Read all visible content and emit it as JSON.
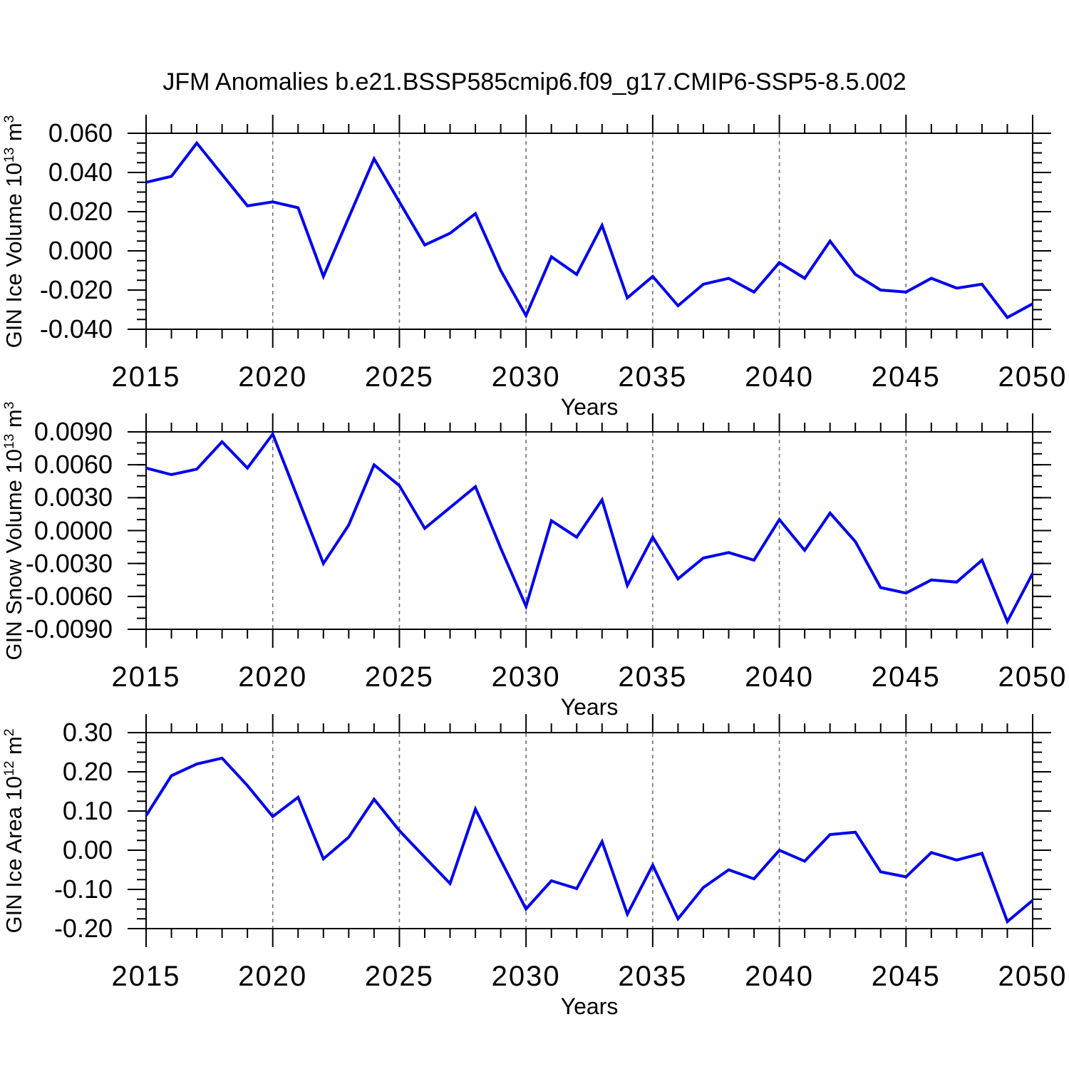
{
  "title": "JFM Anomalies b.e21.BSSP585cmip6.f09_g17.CMIP6-SSP5-8.5.002",
  "x_axis": {
    "label": "Years",
    "range": [
      2015,
      2050
    ],
    "tick_labels": [
      "2015",
      "2020",
      "2025",
      "2030",
      "2035",
      "2040",
      "2045",
      "2050"
    ],
    "tick_values": [
      2015,
      2020,
      2025,
      2030,
      2035,
      2040,
      2045,
      2050
    ],
    "minor_step": 1,
    "gridline_years": [
      2020,
      2025,
      2030,
      2035,
      2040,
      2045
    ]
  },
  "style": {
    "line_color": "#0000EE",
    "axis_color": "#000000",
    "grid_color": "#707070",
    "text_color": "#000000"
  },
  "chart_data": {
    "type": "line",
    "title": "JFM Anomalies b.e21.BSSP585cmip6.f09_g17.CMIP6-SSP5-8.5.002",
    "xlabel": "Years",
    "x": [
      2015,
      2016,
      2017,
      2018,
      2019,
      2020,
      2021,
      2022,
      2023,
      2024,
      2025,
      2026,
      2027,
      2028,
      2029,
      2030,
      2031,
      2032,
      2033,
      2034,
      2035,
      2036,
      2037,
      2038,
      2039,
      2040,
      2041,
      2042,
      2043,
      2044,
      2045,
      2046,
      2047,
      2048,
      2049,
      2050
    ],
    "grid": "vertical-dashed",
    "legend": "none",
    "panels": [
      {
        "ylabel": "GIN Ice Volume 10^13 m^3",
        "ylabel_parts": [
          [
            "GIN Ice Volume 10",
            false
          ],
          [
            "13",
            true
          ],
          [
            " m",
            false
          ],
          [
            "3",
            true
          ]
        ],
        "ylim": [
          -0.04,
          0.06
        ],
        "ytick_values": [
          0.06,
          0.04,
          0.02,
          0.0,
          -0.02,
          -0.04
        ],
        "ytick_labels": [
          "0.060",
          "0.040",
          "0.020",
          "0.000",
          "-0.020",
          "-0.040"
        ],
        "yminor_step": 0.005,
        "values": [
          0.035,
          0.038,
          0.055,
          0.039,
          0.023,
          0.025,
          0.022,
          -0.013,
          0.017,
          0.047,
          0.025,
          0.003,
          0.009,
          0.019,
          -0.01,
          -0.033,
          -0.003,
          -0.012,
          0.013,
          -0.024,
          -0.013,
          -0.028,
          -0.017,
          -0.014,
          -0.021,
          -0.006,
          -0.014,
          0.005,
          -0.012,
          -0.02,
          -0.021,
          -0.014,
          -0.019,
          -0.017,
          -0.034,
          -0.027
        ]
      },
      {
        "ylabel": "GIN Snow Volume 10^13 m^3",
        "ylabel_parts": [
          [
            "GIN Snow Volume 10",
            false
          ],
          [
            "13",
            true
          ],
          [
            " m",
            false
          ],
          [
            "3",
            true
          ]
        ],
        "ylim": [
          -0.009,
          0.009
        ],
        "ytick_values": [
          0.009,
          0.006,
          0.003,
          0.0,
          -0.003,
          -0.006,
          -0.009
        ],
        "ytick_labels": [
          "0.0090",
          "0.0060",
          "0.0030",
          "0.0000",
          "-0.0030",
          "-0.0060",
          "-0.0090"
        ],
        "yminor_step": 0.001,
        "values": [
          0.0057,
          0.0051,
          0.0056,
          0.0081,
          0.0057,
          0.0088,
          0.0029,
          -0.003,
          0.0005,
          0.006,
          0.0041,
          0.0002,
          0.0021,
          0.004,
          -0.0016,
          -0.0069,
          0.0009,
          -0.0006,
          0.0028,
          -0.005,
          -0.0006,
          -0.0044,
          -0.0025,
          -0.002,
          -0.0027,
          0.001,
          -0.0018,
          0.0016,
          -0.001,
          -0.0052,
          -0.0057,
          -0.0045,
          -0.0047,
          -0.0027,
          -0.0083,
          -0.0039
        ]
      },
      {
        "ylabel": "GIN Ice Area 10^12 m^2",
        "ylabel_parts": [
          [
            "GIN Ice Area 10",
            false
          ],
          [
            "12",
            true
          ],
          [
            " m",
            false
          ],
          [
            "2",
            true
          ]
        ],
        "ylim": [
          -0.2,
          0.3
        ],
        "ytick_values": [
          0.3,
          0.2,
          0.1,
          0.0,
          -0.1,
          -0.2
        ],
        "ytick_labels": [
          "0.30",
          "0.20",
          "0.10",
          "0.00",
          "-0.10",
          "-0.20"
        ],
        "yminor_step": 0.025,
        "values": [
          0.088,
          0.19,
          0.22,
          0.235,
          0.165,
          0.086,
          0.135,
          -0.022,
          0.033,
          0.13,
          0.05,
          -0.018,
          -0.085,
          0.105,
          -0.025,
          -0.15,
          -0.078,
          -0.098,
          0.022,
          -0.163,
          -0.038,
          -0.175,
          -0.095,
          -0.05,
          -0.073,
          0.0,
          -0.028,
          0.04,
          0.046,
          -0.055,
          -0.068,
          -0.006,
          -0.025,
          -0.008,
          -0.182,
          -0.128
        ]
      }
    ]
  }
}
